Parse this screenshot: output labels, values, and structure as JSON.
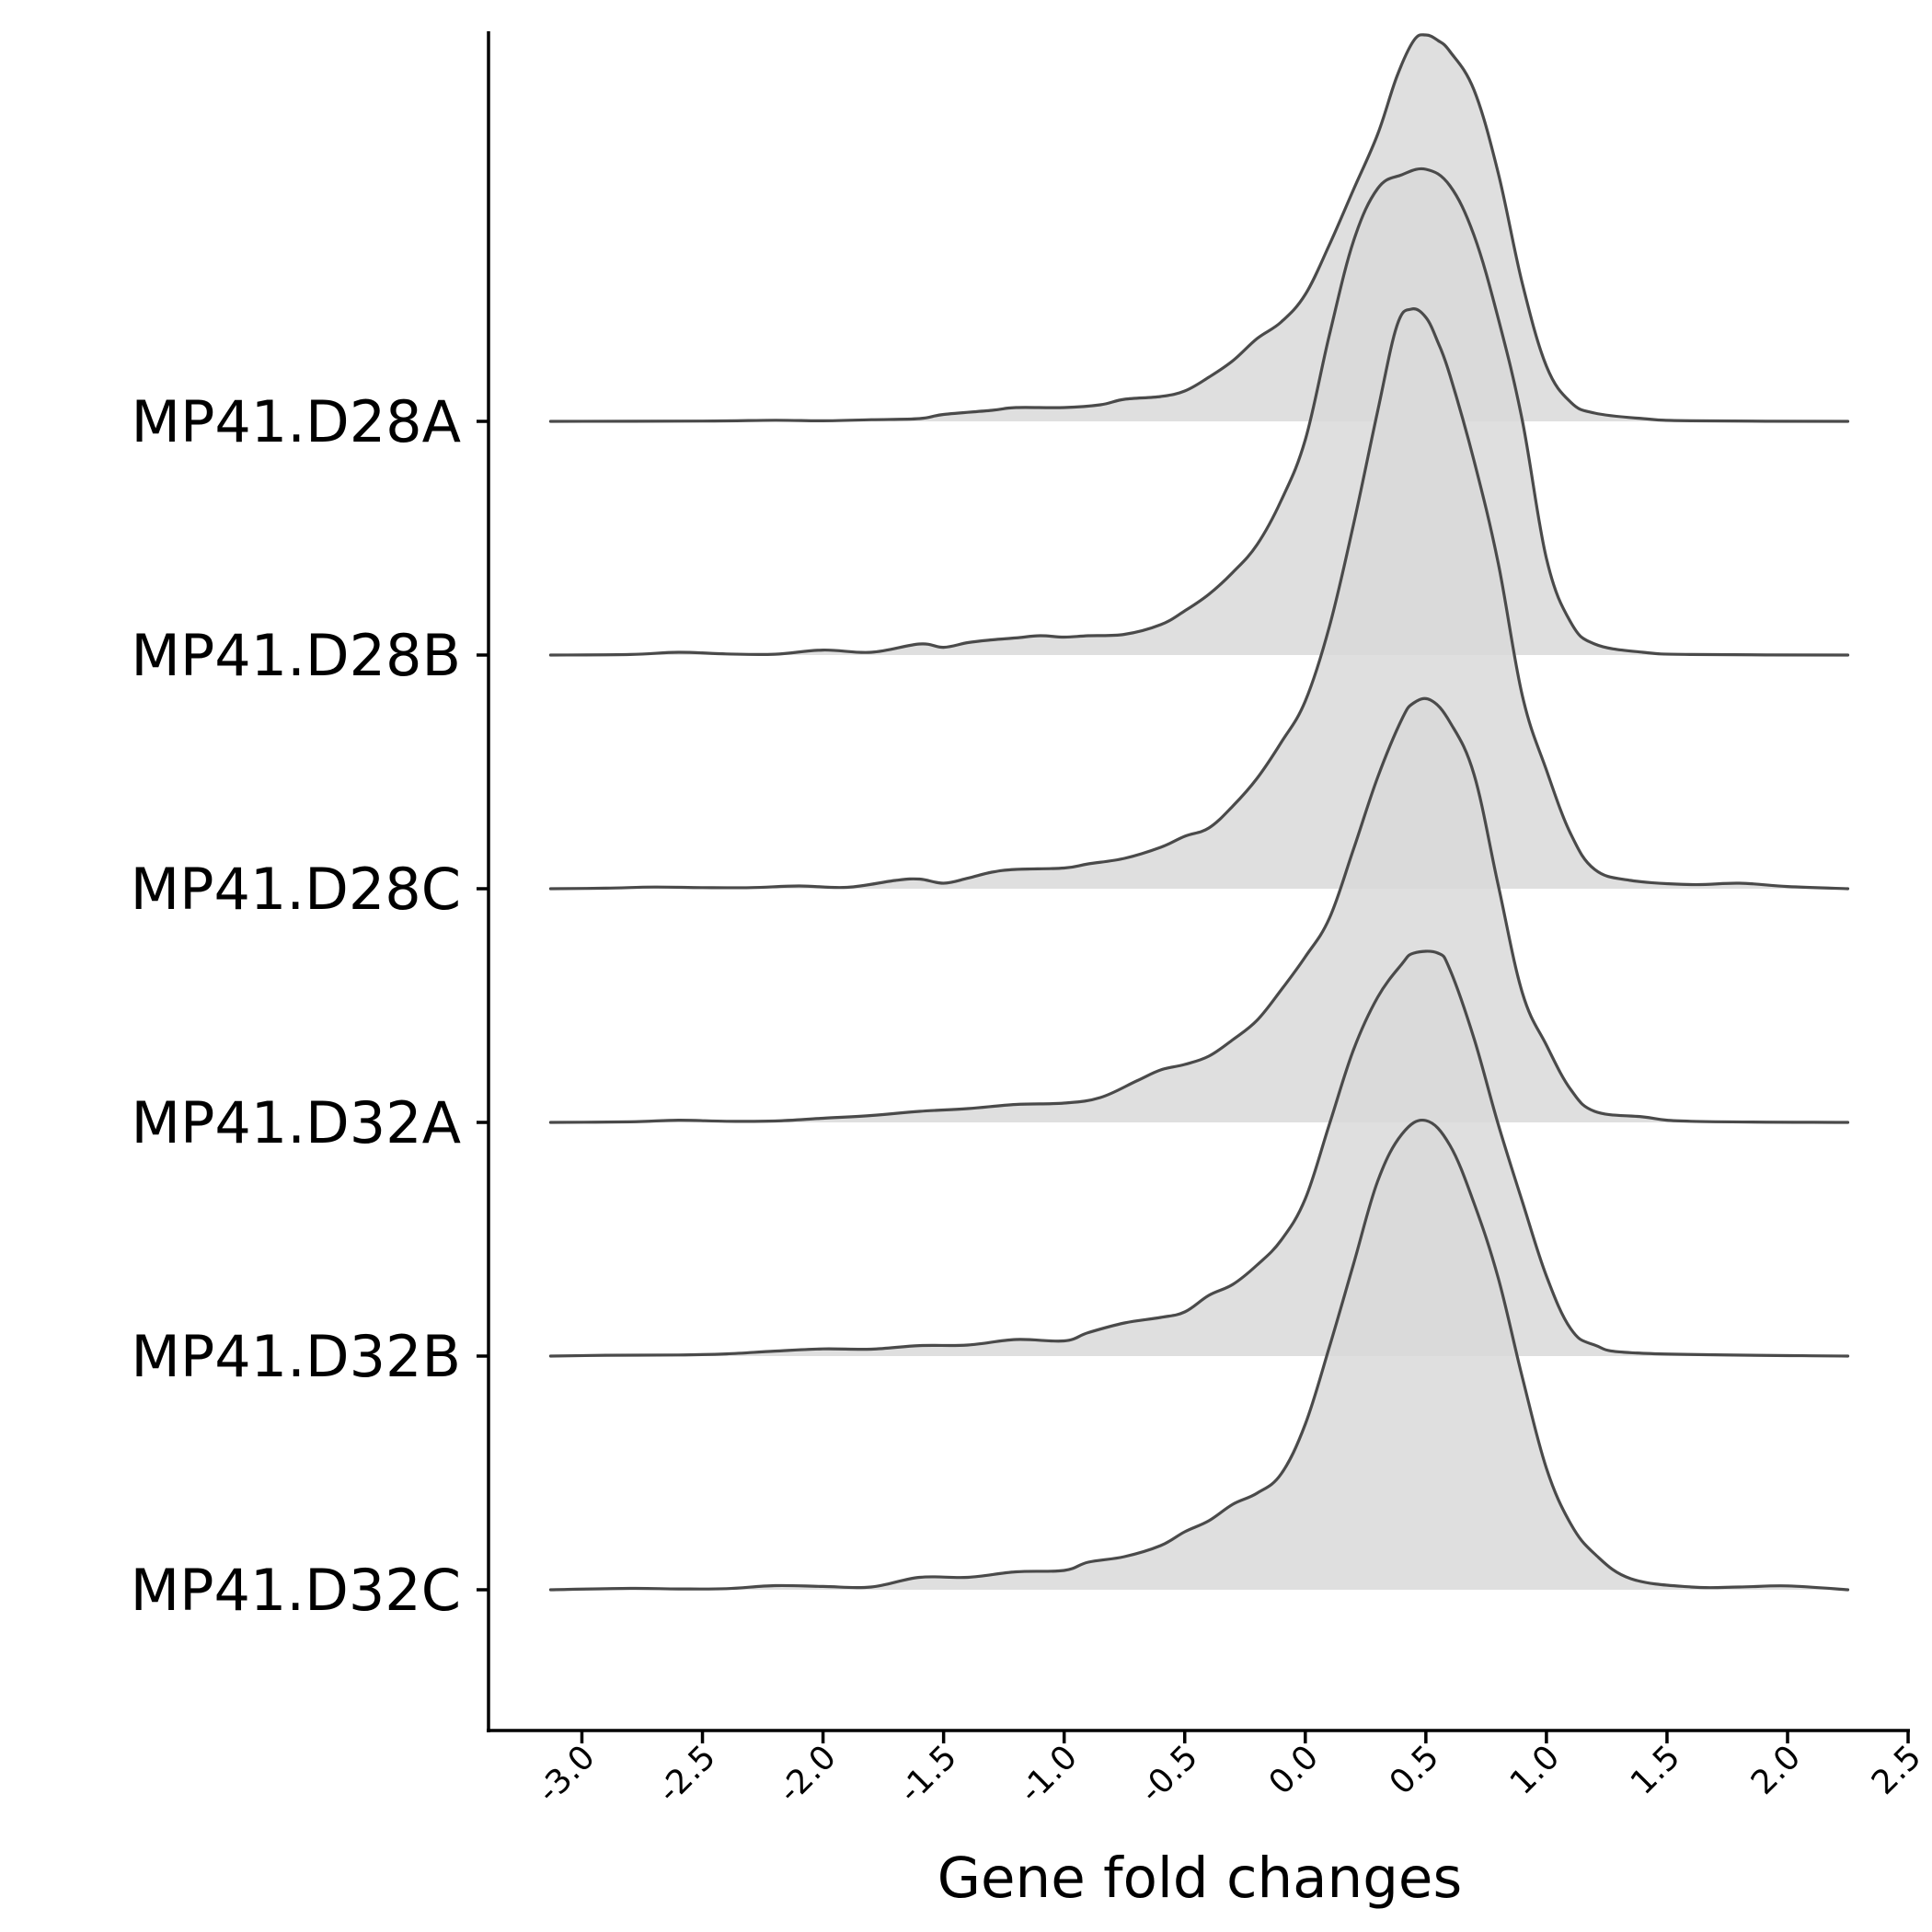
{
  "chart_data": {
    "type": "ridgeline",
    "xlabel": "Gene fold changes",
    "ylabel": "",
    "title": "",
    "xlim": [
      -3.38,
      2.52
    ],
    "x_ticks": [
      -3.0,
      -2.5,
      -2.0,
      -1.5,
      -1.0,
      -0.5,
      0.0,
      0.5,
      1.0,
      1.5,
      2.0,
      2.5
    ],
    "x_tick_labels": [
      "-3.0",
      "-2.5",
      "-2.0",
      "-1.5",
      "-1.0",
      "-0.5",
      "0.0",
      "0.5",
      "1.0",
      "1.5",
      "2.0",
      "2.5"
    ],
    "x_range_data": [
      -3.13,
      2.25
    ],
    "categories": [
      "MP41.D28A",
      "MP41.D28B",
      "MP41.D28C",
      "MP41.D32A",
      "MP41.D32B",
      "MP41.D32C"
    ],
    "grid": false,
    "colors": {
      "fill": "#d9d9d9",
      "fill_opacity": 0.85,
      "line": "#4a4a4a"
    },
    "series": [
      {
        "name": "MP41.D28A",
        "points": [
          [
            -3.13,
            0
          ],
          [
            -2.5,
            0.001
          ],
          [
            -2.2,
            0.004
          ],
          [
            -2.0,
            0.002
          ],
          [
            -1.8,
            0.006
          ],
          [
            -1.6,
            0.01
          ],
          [
            -1.5,
            0.025
          ],
          [
            -1.3,
            0.04
          ],
          [
            -1.2,
            0.05
          ],
          [
            -1.0,
            0.05
          ],
          [
            -0.85,
            0.06
          ],
          [
            -0.75,
            0.08
          ],
          [
            -0.6,
            0.09
          ],
          [
            -0.5,
            0.11
          ],
          [
            -0.4,
            0.16
          ],
          [
            -0.3,
            0.22
          ],
          [
            -0.2,
            0.3
          ],
          [
            -0.1,
            0.36
          ],
          [
            0.0,
            0.46
          ],
          [
            0.1,
            0.64
          ],
          [
            0.2,
            0.84
          ],
          [
            0.3,
            1.04
          ],
          [
            0.38,
            1.25
          ],
          [
            0.45,
            1.38
          ],
          [
            0.5,
            1.4
          ],
          [
            0.55,
            1.38
          ],
          [
            0.6,
            1.34
          ],
          [
            0.7,
            1.2
          ],
          [
            0.8,
            0.9
          ],
          [
            0.9,
            0.5
          ],
          [
            1.0,
            0.2
          ],
          [
            1.1,
            0.07
          ],
          [
            1.2,
            0.03
          ],
          [
            1.4,
            0.01
          ],
          [
            1.6,
            0.002
          ],
          [
            2.25,
            0
          ]
        ]
      },
      {
        "name": "MP41.D28B",
        "points": [
          [
            -3.13,
            0
          ],
          [
            -2.8,
            0.002
          ],
          [
            -2.6,
            0.01
          ],
          [
            -2.4,
            0.004
          ],
          [
            -2.2,
            0.003
          ],
          [
            -2.0,
            0.018
          ],
          [
            -1.8,
            0.01
          ],
          [
            -1.6,
            0.04
          ],
          [
            -1.5,
            0.028
          ],
          [
            -1.4,
            0.045
          ],
          [
            -1.3,
            0.055
          ],
          [
            -1.2,
            0.062
          ],
          [
            -1.1,
            0.07
          ],
          [
            -1.0,
            0.065
          ],
          [
            -0.9,
            0.07
          ],
          [
            -0.75,
            0.075
          ],
          [
            -0.6,
            0.11
          ],
          [
            -0.5,
            0.16
          ],
          [
            -0.4,
            0.22
          ],
          [
            -0.3,
            0.3
          ],
          [
            -0.2,
            0.4
          ],
          [
            -0.1,
            0.56
          ],
          [
            0.0,
            0.78
          ],
          [
            0.1,
            1.16
          ],
          [
            0.2,
            1.5
          ],
          [
            0.3,
            1.69
          ],
          [
            0.4,
            1.74
          ],
          [
            0.5,
            1.76
          ],
          [
            0.6,
            1.7
          ],
          [
            0.7,
            1.52
          ],
          [
            0.8,
            1.22
          ],
          [
            0.9,
            0.85
          ],
          [
            1.0,
            0.35
          ],
          [
            1.1,
            0.12
          ],
          [
            1.2,
            0.04
          ],
          [
            1.4,
            0.01
          ],
          [
            1.6,
            0.002
          ],
          [
            2.25,
            0
          ]
        ]
      },
      {
        "name": "MP41.D28C",
        "points": [
          [
            -3.13,
            0
          ],
          [
            -2.9,
            0.002
          ],
          [
            -2.7,
            0.006
          ],
          [
            -2.5,
            0.004
          ],
          [
            -2.3,
            0.004
          ],
          [
            -2.1,
            0.01
          ],
          [
            -1.9,
            0.005
          ],
          [
            -1.7,
            0.03
          ],
          [
            -1.6,
            0.035
          ],
          [
            -1.5,
            0.02
          ],
          [
            -1.4,
            0.038
          ],
          [
            -1.3,
            0.06
          ],
          [
            -1.2,
            0.07
          ],
          [
            -1.0,
            0.075
          ],
          [
            -0.9,
            0.09
          ],
          [
            -0.75,
            0.11
          ],
          [
            -0.6,
            0.15
          ],
          [
            -0.5,
            0.19
          ],
          [
            -0.4,
            0.22
          ],
          [
            -0.3,
            0.3
          ],
          [
            -0.2,
            0.4
          ],
          [
            -0.1,
            0.53
          ],
          [
            0.0,
            0.68
          ],
          [
            0.1,
            0.95
          ],
          [
            0.2,
            1.32
          ],
          [
            0.3,
            1.73
          ],
          [
            0.38,
            2.04
          ],
          [
            0.44,
            2.1
          ],
          [
            0.5,
            2.07
          ],
          [
            0.55,
            1.98
          ],
          [
            0.6,
            1.86
          ],
          [
            0.7,
            1.55
          ],
          [
            0.8,
            1.18
          ],
          [
            0.9,
            0.7
          ],
          [
            1.0,
            0.43
          ],
          [
            1.1,
            0.2
          ],
          [
            1.2,
            0.07
          ],
          [
            1.35,
            0.03
          ],
          [
            1.6,
            0.015
          ],
          [
            1.8,
            0.02
          ],
          [
            2.0,
            0.008
          ],
          [
            2.25,
            0
          ]
        ]
      },
      {
        "name": "MP41.D32A",
        "points": [
          [
            -3.13,
            0
          ],
          [
            -2.8,
            0.002
          ],
          [
            -2.6,
            0.008
          ],
          [
            -2.4,
            0.004
          ],
          [
            -2.2,
            0.005
          ],
          [
            -2.0,
            0.015
          ],
          [
            -1.8,
            0.025
          ],
          [
            -1.6,
            0.04
          ],
          [
            -1.4,
            0.05
          ],
          [
            -1.2,
            0.065
          ],
          [
            -1.0,
            0.07
          ],
          [
            -0.85,
            0.09
          ],
          [
            -0.7,
            0.15
          ],
          [
            -0.6,
            0.19
          ],
          [
            -0.5,
            0.21
          ],
          [
            -0.4,
            0.24
          ],
          [
            -0.3,
            0.3
          ],
          [
            -0.2,
            0.37
          ],
          [
            -0.1,
            0.48
          ],
          [
            0.0,
            0.6
          ],
          [
            0.1,
            0.74
          ],
          [
            0.2,
            0.99
          ],
          [
            0.3,
            1.25
          ],
          [
            0.4,
            1.46
          ],
          [
            0.45,
            1.52
          ],
          [
            0.52,
            1.53
          ],
          [
            0.6,
            1.45
          ],
          [
            0.7,
            1.26
          ],
          [
            0.8,
            0.86
          ],
          [
            0.9,
            0.47
          ],
          [
            1.0,
            0.28
          ],
          [
            1.1,
            0.12
          ],
          [
            1.2,
            0.04
          ],
          [
            1.4,
            0.02
          ],
          [
            1.6,
            0.004
          ],
          [
            2.25,
            0
          ]
        ]
      },
      {
        "name": "MP41.D32B",
        "points": [
          [
            -3.13,
            0
          ],
          [
            -2.9,
            0.003
          ],
          [
            -2.6,
            0.004
          ],
          [
            -2.4,
            0.008
          ],
          [
            -2.2,
            0.018
          ],
          [
            -2.0,
            0.026
          ],
          [
            -1.8,
            0.025
          ],
          [
            -1.6,
            0.038
          ],
          [
            -1.4,
            0.04
          ],
          [
            -1.2,
            0.06
          ],
          [
            -1.0,
            0.055
          ],
          [
            -0.9,
            0.085
          ],
          [
            -0.75,
            0.12
          ],
          [
            -0.6,
            0.14
          ],
          [
            -0.5,
            0.16
          ],
          [
            -0.4,
            0.22
          ],
          [
            -0.3,
            0.26
          ],
          [
            -0.2,
            0.33
          ],
          [
            -0.1,
            0.42
          ],
          [
            0.0,
            0.57
          ],
          [
            0.1,
            0.84
          ],
          [
            0.2,
            1.11
          ],
          [
            0.3,
            1.3
          ],
          [
            0.4,
            1.42
          ],
          [
            0.45,
            1.46
          ],
          [
            0.55,
            1.46
          ],
          [
            0.6,
            1.4
          ],
          [
            0.7,
            1.15
          ],
          [
            0.8,
            0.84
          ],
          [
            0.9,
            0.56
          ],
          [
            1.0,
            0.29
          ],
          [
            1.1,
            0.1
          ],
          [
            1.2,
            0.04
          ],
          [
            1.4,
            0.01
          ],
          [
            2.25,
            0
          ]
        ]
      },
      {
        "name": "MP41.D32C",
        "points": [
          [
            -3.13,
            0
          ],
          [
            -2.8,
            0.005
          ],
          [
            -2.6,
            0.003
          ],
          [
            -2.4,
            0.004
          ],
          [
            -2.2,
            0.015
          ],
          [
            -2.0,
            0.012
          ],
          [
            -1.8,
            0.01
          ],
          [
            -1.6,
            0.045
          ],
          [
            -1.4,
            0.045
          ],
          [
            -1.2,
            0.065
          ],
          [
            -1.0,
            0.07
          ],
          [
            -0.9,
            0.1
          ],
          [
            -0.75,
            0.12
          ],
          [
            -0.6,
            0.16
          ],
          [
            -0.5,
            0.21
          ],
          [
            -0.4,
            0.25
          ],
          [
            -0.3,
            0.31
          ],
          [
            -0.2,
            0.35
          ],
          [
            -0.1,
            0.42
          ],
          [
            0.0,
            0.6
          ],
          [
            0.1,
            0.88
          ],
          [
            0.2,
            1.18
          ],
          [
            0.3,
            1.48
          ],
          [
            0.4,
            1.65
          ],
          [
            0.5,
            1.7
          ],
          [
            0.6,
            1.61
          ],
          [
            0.7,
            1.4
          ],
          [
            0.8,
            1.13
          ],
          [
            0.9,
            0.77
          ],
          [
            1.0,
            0.44
          ],
          [
            1.1,
            0.24
          ],
          [
            1.2,
            0.13
          ],
          [
            1.35,
            0.04
          ],
          [
            1.6,
            0.01
          ],
          [
            1.8,
            0.01
          ],
          [
            2.0,
            0.014
          ],
          [
            2.25,
            0
          ]
        ]
      }
    ]
  }
}
